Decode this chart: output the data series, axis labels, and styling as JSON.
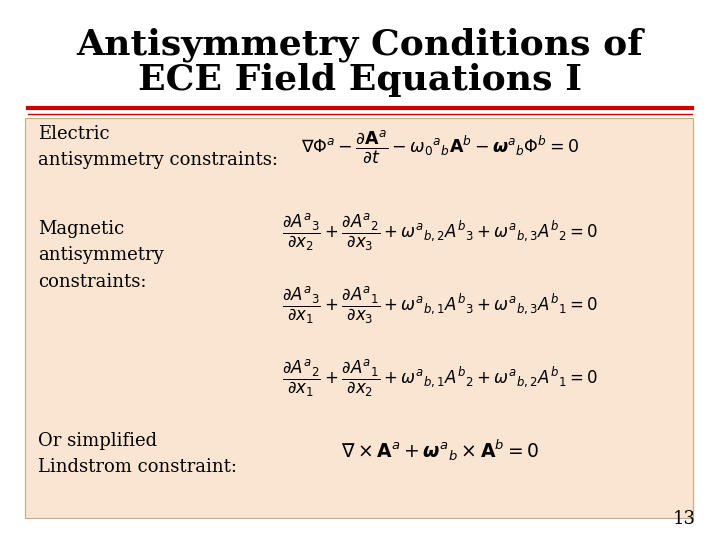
{
  "title_line1": "Antisymmetry Conditions of",
  "title_line2": "ECE Field Equations I",
  "title_fontsize": 26,
  "title_color": "#000000",
  "separator_color": "#CC0000",
  "background_color": "#FAE5D3",
  "slide_background": "#FFFFFF",
  "page_number": "13",
  "label_electric": "Electric\nantisymmetry constraints:",
  "label_magnetic": "Magnetic\nantisymmetry\nconstraints:",
  "label_or": "Or simplified\nLindstrom constraint:",
  "text_color": "#000000",
  "label_fontsize": 13,
  "eq_fontsize": 13,
  "eq_electric": "$\\nabla\\Phi^{a} - \\dfrac{\\partial \\mathbf{A}^{a}}{\\partial t} - \\omega_0{}^{a}{}_{b}\\mathbf{A}^{b} - \\boldsymbol{\\omega}^{a}{}_{b}\\Phi^{b} = 0$",
  "eq_mag1": "$\\dfrac{\\partial A^{a}{}_{3}}{\\partial x_2} + \\dfrac{\\partial A^{a}{}_{2}}{\\partial x_3} + \\omega^{a}{}_{b,2}A^{b}{}_{3} + \\omega^{a}{}_{b,3}A^{b}{}_{2} = 0$",
  "eq_mag2": "$\\dfrac{\\partial A^{a}{}_{3}}{\\partial x_1} + \\dfrac{\\partial A^{a}{}_{1}}{\\partial x_3} + \\omega^{a}{}_{b,1}A^{b}{}_{3} + \\omega^{a}{}_{b,3}A^{b}{}_{1} = 0$",
  "eq_mag3": "$\\dfrac{\\partial A^{a}{}_{2}}{\\partial x_1} + \\dfrac{\\partial A^{a}{}_{1}}{\\partial x_2} + \\omega^{a}{}_{b,1}A^{b}{}_{2} + \\omega^{a}{}_{b,2}A^{b}{}_{1} = 0$",
  "eq_or": "$\\nabla \\times \\mathbf{A}^{a} + \\boldsymbol{\\omega}^{a}{}_{b} \\times \\mathbf{A}^{b} = 0$"
}
